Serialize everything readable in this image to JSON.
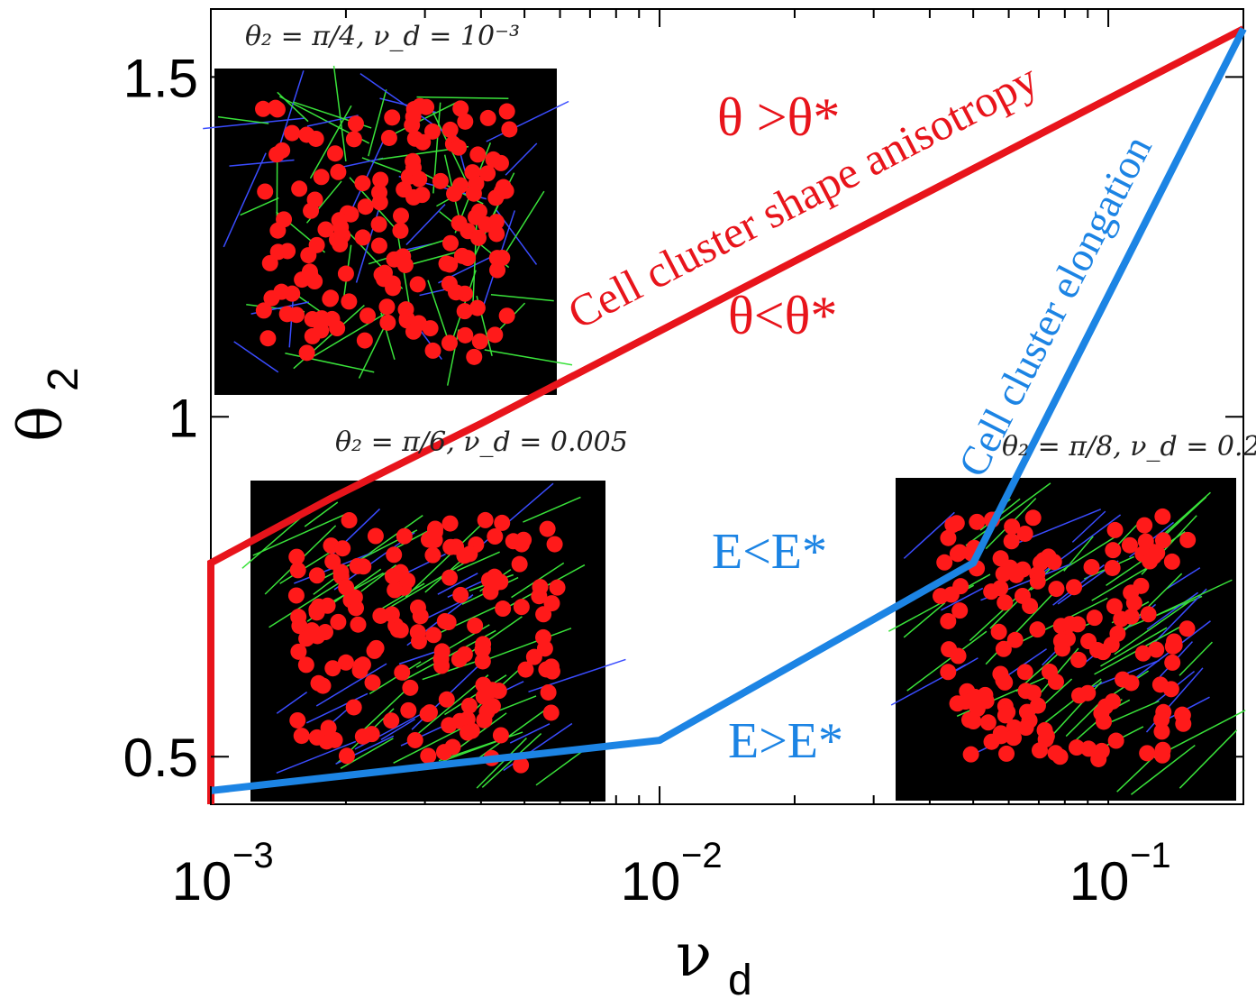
{
  "chart_data": {
    "type": "line",
    "xscale": "log",
    "xlabel": "ν",
    "xlabel_sub": "d",
    "ylabel": "θ",
    "ylabel_sub": "2",
    "xlim": [
      0.001,
      0.2
    ],
    "ylim": [
      0.43,
      1.6
    ],
    "x_ticks": [
      {
        "value": 0.001,
        "base": "10",
        "exp": "−3"
      },
      {
        "value": 0.01,
        "base": "10",
        "exp": "−2"
      },
      {
        "value": 0.1,
        "base": "10",
        "exp": "−1"
      }
    ],
    "y_ticks": [
      {
        "value": 0.5,
        "label": "0.5"
      },
      {
        "value": 1.0,
        "label": "1"
      },
      {
        "value": 1.5,
        "label": "1.5"
      }
    ],
    "series": [
      {
        "color": "#e8141b",
        "x": [
          0.001,
          0.001,
          0.00185,
          0.004,
          0.2
        ],
        "y": [
          0.43,
          0.785,
          0.88,
          0.99,
          1.5708
        ]
      },
      {
        "color": "#1c84e4",
        "x": [
          0.001,
          0.01,
          0.05,
          0.058,
          0.2
        ],
        "y": [
          0.45,
          0.524,
          0.785,
          0.87,
          1.5708
        ]
      }
    ],
    "annotations": {
      "theta_gt": "θ >θ*",
      "theta_lt": "θ<θ*",
      "e_lt": "E<E*",
      "e_gt": "E>E*",
      "red_curve_label": "Cell cluster shape anisotropy",
      "blue_curve_label": "Cell cluster elongation"
    },
    "insets": [
      {
        "caption": "θ₂ = π/4, ν_d = 10⁻³"
      },
      {
        "caption": "θ₂ = π/6, ν_d = 0.005"
      },
      {
        "caption": "θ₂ = π/8, ν_d = 0.2"
      }
    ],
    "colors": {
      "red": "#e8141b",
      "blue": "#1c84e4",
      "inset_bg": "#000000",
      "cell": "#ff1a1a",
      "fiber": "#39e23a",
      "fiber2": "#3a4cff"
    }
  }
}
